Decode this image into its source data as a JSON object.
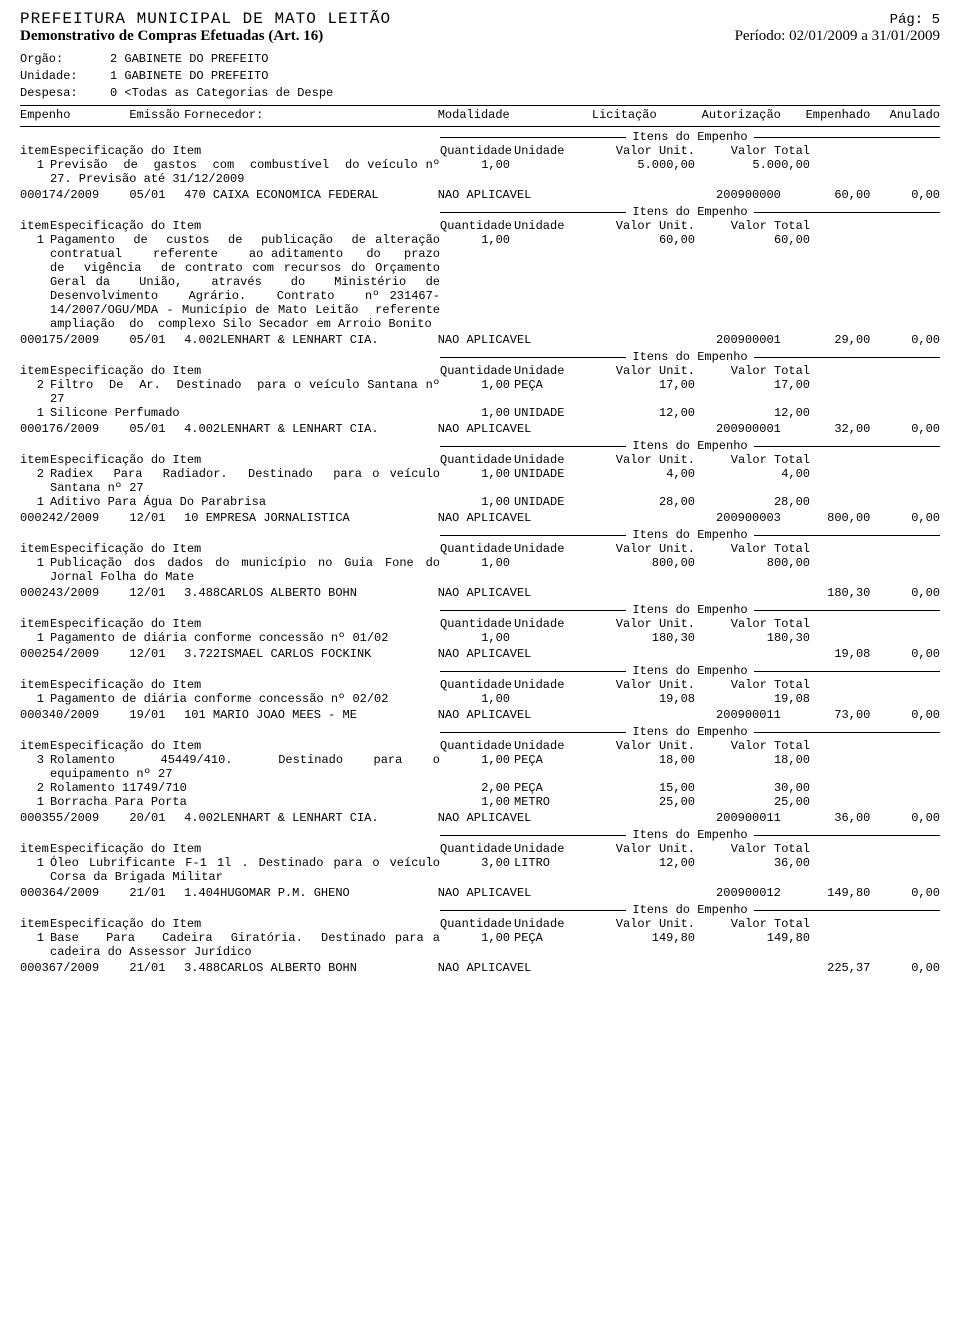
{
  "header": {
    "entity": "PREFEITURA MUNICIPAL DE MATO LEITÃO",
    "page_label": "Pág:",
    "page_num": "5",
    "subtitle": "Demonstrativo de Compras Efetuadas (Art. 16)",
    "periodo": "Período: 02/01/2009 a 31/01/2009"
  },
  "meta": {
    "orgao_l": "Orgão:",
    "orgao_v": "2 GABINETE DO PREFEITO",
    "unidade_l": "Unidade:",
    "unidade_v": "1 GABINETE DO PREFEITO",
    "despesa_l": "Despesa:",
    "despesa_v": "0 <Todas as Categorias de Despe"
  },
  "cols": {
    "empenho": "Empenho",
    "emissao": "Emissão",
    "fornecedor": "Fornecedor:",
    "modalidade": "Modalidade",
    "licitacao": "Licitação",
    "autorizacao": "Autorização",
    "empenhado": "Empenhado",
    "anulado": "Anulado"
  },
  "itens_label": "Itens do Empenho",
  "icols": {
    "item": "item",
    "spec": "Especificação do Item",
    "qtd": "Quantidade",
    "un": "Unidade",
    "vu": "Valor Unit.",
    "vt": "Valor Total"
  },
  "rows": [
    {
      "items": [
        {
          "n": "1",
          "spec": "Previsão  de  gastos  com  combustível  do veículo nº 27. Previsão até 31/12/2009",
          "qty": "1,00",
          "un": "",
          "vu": "5.000,00",
          "vt": "5.000,00"
        }
      ]
    },
    {
      "emp": "000174/2009",
      "emi": "05/01",
      "forn": "470 CAIXA ECONOMICA FEDERAL",
      "mod": "NAO APLICAVEL",
      "lic": "",
      "aut": "200900000",
      "val": "60,00",
      "anu": "0,00",
      "items": [
        {
          "n": "1",
          "spec": "Pagamento  de  custos  de  publicação  de alteração    contratual    referente    ao aditamento   do   prazo   de  vigência  de contrato com recursos do Orçamento Geral da   União,   através   do   Ministério  de Desenvolvimento   Agrário.   Contrato   nº 231467-14/2007/OGU/MDA - Município de Mato Leitão  referente  ampliação  do  complexo Silo Secador em Arroio Bonito",
          "qty": "1,00",
          "un": "",
          "vu": "60,00",
          "vt": "60,00"
        }
      ]
    },
    {
      "emp": "000175/2009",
      "emi": "05/01",
      "forn": "4.002LENHART & LENHART CIA.",
      "mod": "NAO APLICAVEL",
      "lic": "",
      "aut": "200900001",
      "val": "29,00",
      "anu": "0,00",
      "items": [
        {
          "n": "2",
          "spec": "Filtro  De  Ar.  Destinado  para o veículo Santana nº 27",
          "qty": "1,00",
          "un": "PEÇA",
          "vu": "17,00",
          "vt": "17,00"
        },
        {
          "n": "1",
          "spec": "Silicone Perfumado",
          "qty": "1,00",
          "un": "UNIDADE",
          "vu": "12,00",
          "vt": "12,00"
        }
      ]
    },
    {
      "emp": "000176/2009",
      "emi": "05/01",
      "forn": "4.002LENHART & LENHART CIA.",
      "mod": "NAO APLICAVEL",
      "lic": "",
      "aut": "200900001",
      "val": "32,00",
      "anu": "0,00",
      "items": [
        {
          "n": "2",
          "spec": "Radiex  Para  Radiador.  Destinado  para o veículo Santana nº 27",
          "qty": "1,00",
          "un": "UNIDADE",
          "vu": "4,00",
          "vt": "4,00"
        },
        {
          "n": "1",
          "spec": "Aditivo Para Água Do Parabrisa",
          "qty": "1,00",
          "un": "UNIDADE",
          "vu": "28,00",
          "vt": "28,00"
        }
      ]
    },
    {
      "emp": "000242/2009",
      "emi": "12/01",
      "forn": "10 EMPRESA JORNALISTICA",
      "mod": "NAO APLICAVEL",
      "lic": "",
      "aut": "200900003",
      "val": "800,00",
      "anu": "0,00",
      "items": [
        {
          "n": "1",
          "spec": "Publicação dos dados do município no Guia Fone do Jornal Folha do Mate",
          "qty": "1,00",
          "un": "",
          "vu": "800,00",
          "vt": "800,00"
        }
      ]
    },
    {
      "emp": "000243/2009",
      "emi": "12/01",
      "forn": "3.488CARLOS ALBERTO BOHN",
      "mod": "NAO APLICAVEL",
      "lic": "",
      "aut": "",
      "val": "180,30",
      "anu": "0,00",
      "items": [
        {
          "n": "1",
          "spec": "Pagamento de diária conforme concessão nº 01/02",
          "qty": "1,00",
          "un": "",
          "vu": "180,30",
          "vt": "180,30"
        }
      ]
    },
    {
      "emp": "000254/2009",
      "emi": "12/01",
      "forn": "3.722ISMAEL CARLOS FOCKINK",
      "mod": "NAO APLICAVEL",
      "lic": "",
      "aut": "",
      "val": "19,08",
      "anu": "0,00",
      "items": [
        {
          "n": "1",
          "spec": "Pagamento de diária conforme concessão nº 02/02",
          "qty": "1,00",
          "un": "",
          "vu": "19,08",
          "vt": "19,08"
        }
      ]
    },
    {
      "emp": "000340/2009",
      "emi": "19/01",
      "forn": "101 MARIO JOAO MEES - ME",
      "mod": "NAO APLICAVEL",
      "lic": "",
      "aut": "200900011",
      "val": "73,00",
      "anu": "0,00",
      "items": [
        {
          "n": "3",
          "spec": "Rolamento   45449/410.   Destinado  para  o equipamento nº 27",
          "qty": "1,00",
          "un": "PEÇA",
          "vu": "18,00",
          "vt": "18,00"
        },
        {
          "n": "2",
          "spec": "Rolamento 11749/710",
          "qty": "2,00",
          "un": "PEÇA",
          "vu": "15,00",
          "vt": "30,00"
        },
        {
          "n": "1",
          "spec": "Borracha Para Porta",
          "qty": "1,00",
          "un": "METRO",
          "vu": "25,00",
          "vt": "25,00"
        }
      ]
    },
    {
      "emp": "000355/2009",
      "emi": "20/01",
      "forn": "4.002LENHART & LENHART CIA.",
      "mod": "NAO APLICAVEL",
      "lic": "",
      "aut": "200900011",
      "val": "36,00",
      "anu": "0,00",
      "items": [
        {
          "n": "1",
          "spec": "Óleo Lubrificante F-1 1l . Destinado para o veículo Corsa da Brigada Militar",
          "qty": "3,00",
          "un": "LITRO",
          "vu": "12,00",
          "vt": "36,00"
        }
      ]
    },
    {
      "emp": "000364/2009",
      "emi": "21/01",
      "forn": "1.404HUGOMAR P.M. GHENO",
      "mod": "NAO APLICAVEL",
      "lic": "",
      "aut": "200900012",
      "val": "149,80",
      "anu": "0,00",
      "items": [
        {
          "n": "1",
          "spec": "Base   Para   Cadeira  Giratória.  Destinado para a cadeira do Assessor Jurídico",
          "qty": "1,00",
          "un": "PEÇA",
          "vu": "149,80",
          "vt": "149,80"
        }
      ]
    },
    {
      "emp": "000367/2009",
      "emi": "21/01",
      "forn": "3.488CARLOS ALBERTO BOHN",
      "mod": "NAO APLICAVEL",
      "lic": "",
      "aut": "",
      "val": "225,37",
      "anu": "0,00",
      "items": []
    }
  ]
}
